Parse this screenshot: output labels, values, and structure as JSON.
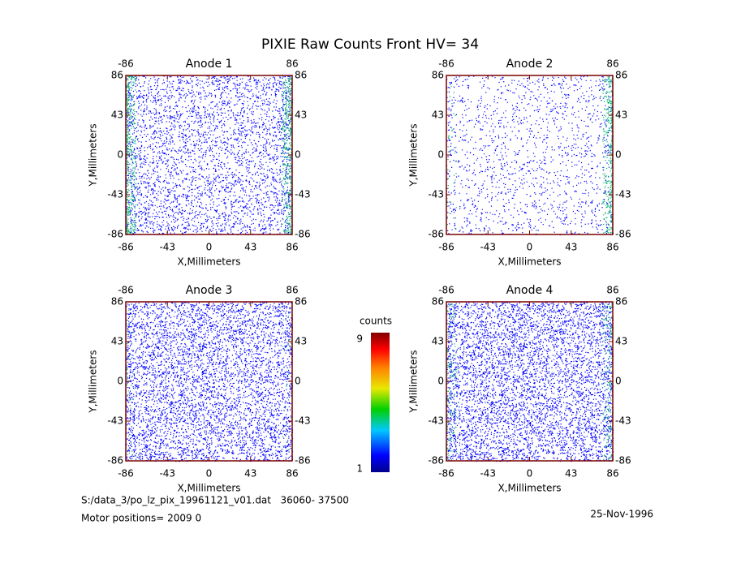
{
  "title": "PIXIE Raw Counts Front HV= 34",
  "panels": [
    {
      "title": "Anode 1",
      "xlabel": "X,Millimeters",
      "ylabel": "Y,Millimeters",
      "xlim": [
        -86,
        86
      ],
      "ylim": [
        -86,
        86
      ],
      "xticks": [
        -86,
        -43,
        0,
        43,
        86
      ],
      "yticks": [
        -86,
        -43,
        0,
        43,
        86
      ]
    },
    {
      "title": "Anode 2",
      "xlabel": "X,Millimeters",
      "ylabel": "Y,Millimeters",
      "xlim": [
        -86,
        86
      ],
      "ylim": [
        -86,
        86
      ],
      "xticks": [
        -86,
        -43,
        0,
        43,
        86
      ],
      "yticks": [
        -86,
        -43,
        0,
        43,
        86
      ]
    },
    {
      "title": "Anode 3",
      "xlabel": "X,Millimeters",
      "ylabel": "Y,Millimeters",
      "xlim": [
        -86,
        86
      ],
      "ylim": [
        -86,
        86
      ],
      "xticks": [
        -86,
        -43,
        0,
        43,
        86
      ],
      "yticks": [
        -86,
        -43,
        0,
        43,
        86
      ]
    },
    {
      "title": "Anode 4",
      "xlabel": "X,Millimeters",
      "ylabel": "Y,Millimeters",
      "xlim": [
        -86,
        86
      ],
      "ylim": [
        -86,
        86
      ],
      "xticks": [
        -86,
        -43,
        0,
        43,
        86
      ],
      "yticks": [
        -86,
        -43,
        0,
        43,
        86
      ]
    }
  ],
  "colorbar": {
    "label": "counts",
    "lim": [
      1,
      9
    ],
    "ticks": [
      1,
      9
    ]
  },
  "footer": {
    "file": "S:/data_3/po_lz_pix_19961121_v01.dat   36060- 37500",
    "motor": "Motor positions= 2009 0",
    "date": "25-Nov-1996"
  }
}
